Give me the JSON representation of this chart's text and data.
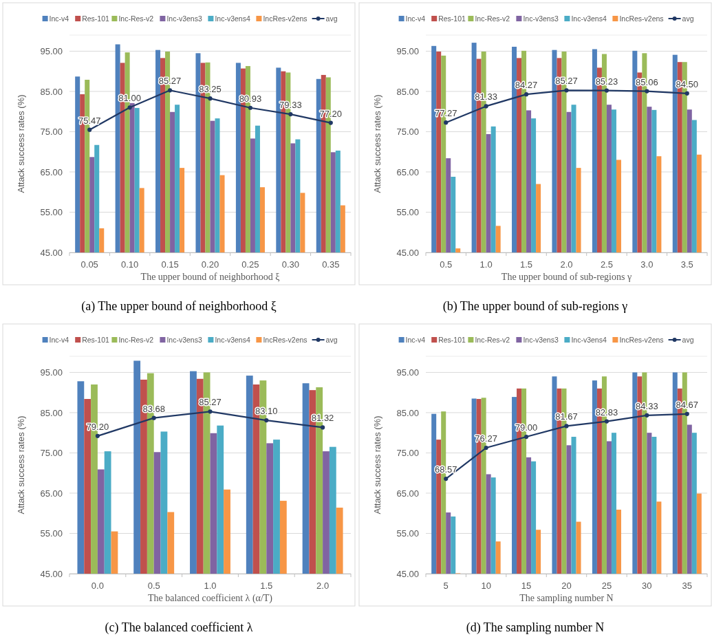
{
  "chart_data": [
    {
      "type": "bar",
      "title": "(a) The upper bound of neighborhood ξ",
      "xlabel": "The upper bound of neighborhood ξ",
      "ylabel": "Attack success rates (%)",
      "categories": [
        "0.05",
        "0.10",
        "0.15",
        "0.20",
        "0.25",
        "0.30",
        "0.35"
      ],
      "ylim": [
        45,
        99
      ],
      "yticks": [
        {
          "value": 45,
          "label": "45.00"
        },
        {
          "value": 55,
          "label": "55.00"
        },
        {
          "value": 65,
          "label": "65.00"
        },
        {
          "value": 75,
          "label": "75.00"
        },
        {
          "value": 85,
          "label": "85.00"
        },
        {
          "value": 95,
          "label": "95.00"
        }
      ],
      "grid": "y",
      "legend": "top",
      "series": [
        {
          "name": "Inc-v4",
          "color": "#4f81bd",
          "values": [
            88.7,
            96.7,
            95.3,
            94.5,
            92.1,
            90.9,
            88.1
          ]
        },
        {
          "name": "Res-101",
          "color": "#c0504d",
          "values": [
            84.3,
            92.1,
            93.3,
            92.1,
            90.7,
            90.0,
            89.1
          ]
        },
        {
          "name": "Inc-Res-v2",
          "color": "#9bbb59",
          "values": [
            87.9,
            94.7,
            94.9,
            92.2,
            91.3,
            89.7,
            88.5
          ]
        },
        {
          "name": "Inc-v3ens3",
          "color": "#8064a2",
          "values": [
            68.7,
            82.1,
            79.9,
            77.7,
            73.3,
            72.1,
            69.9
          ]
        },
        {
          "name": "Inc-v3ens4",
          "color": "#4bacc6",
          "values": [
            71.7,
            80.9,
            81.7,
            78.3,
            76.5,
            73.1,
            70.3
          ]
        },
        {
          "name": "IncRes-v2ens",
          "color": "#f79646",
          "values": [
            51.0,
            61.0,
            66.0,
            64.2,
            61.2,
            59.8,
            56.7
          ]
        },
        {
          "name": "avg",
          "type": "line",
          "color": "#203864",
          "marker": "circle",
          "values": [
            75.47,
            81.0,
            85.27,
            83.25,
            80.93,
            79.33,
            77.2
          ],
          "value_labels": [
            "75.47",
            "81.00",
            "85.27",
            "83.25",
            "80.93",
            "79.33",
            "77.20"
          ]
        }
      ]
    },
    {
      "type": "bar",
      "title": "(b) The upper bound of sub-regions γ",
      "xlabel": "The upper bound of sub-regions γ",
      "ylabel": "Attack success rates (%)",
      "categories": [
        "0.5",
        "1.0",
        "1.5",
        "2.0",
        "2.5",
        "3.0",
        "3.5"
      ],
      "ylim": [
        45,
        99
      ],
      "yticks": [
        {
          "value": 45,
          "label": "45.00"
        },
        {
          "value": 55,
          "label": "55.00"
        },
        {
          "value": 65,
          "label": "65.00"
        },
        {
          "value": 75,
          "label": "75.00"
        },
        {
          "value": 85,
          "label": "85.00"
        },
        {
          "value": 95,
          "label": "95.00"
        }
      ],
      "grid": "y",
      "legend": "top",
      "series": [
        {
          "name": "Inc-v4",
          "color": "#4f81bd",
          "values": [
            96.3,
            97.1,
            96.1,
            95.3,
            95.5,
            95.1,
            94.1
          ]
        },
        {
          "name": "Res-101",
          "color": "#c0504d",
          "values": [
            94.9,
            93.1,
            93.3,
            93.3,
            90.9,
            89.7,
            92.3
          ]
        },
        {
          "name": "Inc-Res-v2",
          "color": "#9bbb59",
          "values": [
            93.9,
            94.9,
            95.1,
            94.9,
            94.3,
            94.5,
            92.3
          ]
        },
        {
          "name": "Inc-v3ens3",
          "color": "#8064a2",
          "values": [
            68.4,
            74.4,
            80.3,
            79.9,
            81.7,
            81.2,
            80.5
          ]
        },
        {
          "name": "Inc-v3ens4",
          "color": "#4bacc6",
          "values": [
            63.8,
            76.3,
            78.3,
            81.7,
            80.5,
            80.4,
            77.9
          ]
        },
        {
          "name": "IncRes-v2ens",
          "color": "#f79646",
          "values": [
            46.0,
            51.6,
            62.0,
            66.0,
            68.0,
            68.9,
            69.3
          ]
        },
        {
          "name": "avg",
          "type": "line",
          "color": "#203864",
          "marker": "circle",
          "values": [
            77.27,
            81.33,
            84.27,
            85.27,
            85.23,
            85.06,
            84.5
          ],
          "value_labels": [
            "77.27",
            "81.33",
            "84.27",
            "85.27",
            "85.23",
            "85.06",
            "84.50"
          ]
        }
      ]
    },
    {
      "type": "bar",
      "title": "(c) The balanced coefficient λ",
      "xlabel": "The balanced coefficient λ (α/T)",
      "ylabel": "Attack success rates (%)",
      "categories": [
        "0.0",
        "0.5",
        "1.0",
        "1.5",
        "2.0"
      ],
      "ylim": [
        45,
        99
      ],
      "yticks": [
        {
          "value": 45,
          "label": "45.00"
        },
        {
          "value": 55,
          "label": "55.00"
        },
        {
          "value": 65,
          "label": "65.00"
        },
        {
          "value": 75,
          "label": "75.00"
        },
        {
          "value": 85,
          "label": "85.00"
        },
        {
          "value": 95,
          "label": "95.00"
        }
      ],
      "grid": "y",
      "legend": "top",
      "series": [
        {
          "name": "Inc-v4",
          "color": "#4f81bd",
          "values": [
            92.8,
            97.9,
            95.3,
            94.2,
            92.3
          ]
        },
        {
          "name": "Res-101",
          "color": "#c0504d",
          "values": [
            88.4,
            93.2,
            93.4,
            92.0,
            90.6
          ]
        },
        {
          "name": "Inc-Res-v2",
          "color": "#9bbb59",
          "values": [
            92.0,
            94.8,
            95.0,
            93.0,
            91.3
          ]
        },
        {
          "name": "Inc-v3ens3",
          "color": "#8064a2",
          "values": [
            70.9,
            75.2,
            79.9,
            77.4,
            75.4
          ]
        },
        {
          "name": "Inc-v3ens4",
          "color": "#4bacc6",
          "values": [
            75.4,
            80.3,
            81.8,
            78.3,
            76.5
          ]
        },
        {
          "name": "IncRes-v2ens",
          "color": "#f79646",
          "values": [
            55.5,
            60.3,
            65.9,
            63.1,
            61.4
          ]
        },
        {
          "name": "avg",
          "type": "line",
          "color": "#203864",
          "marker": "circle",
          "values": [
            79.2,
            83.68,
            85.27,
            83.1,
            81.32
          ],
          "value_labels": [
            "79.20",
            "83.68",
            "85.27",
            "83.10",
            "81.32"
          ]
        }
      ]
    },
    {
      "type": "bar",
      "title": "(d) The sampling number N",
      "xlabel": "The sampling number N",
      "ylabel": "Attack success rates (%)",
      "categories": [
        "5",
        "10",
        "15",
        "20",
        "25",
        "30",
        "35"
      ],
      "ylim": [
        45,
        99
      ],
      "yticks": [
        {
          "value": 45,
          "label": "45.00"
        },
        {
          "value": 55,
          "label": "55.00"
        },
        {
          "value": 65,
          "label": "65.00"
        },
        {
          "value": 75,
          "label": "75.00"
        },
        {
          "value": 85,
          "label": "85.00"
        },
        {
          "value": 95,
          "label": "95.00"
        }
      ],
      "grid": "y",
      "legend": "top",
      "series": [
        {
          "name": "Inc-v4",
          "color": "#4f81bd",
          "values": [
            84.7,
            88.5,
            88.9,
            94.0,
            93.0,
            95.0,
            95.0
          ]
        },
        {
          "name": "Res-101",
          "color": "#c0504d",
          "values": [
            78.3,
            88.4,
            91.0,
            91.0,
            91.0,
            94.0,
            91.0
          ]
        },
        {
          "name": "Inc-Res-v2",
          "color": "#9bbb59",
          "values": [
            85.3,
            88.7,
            91.0,
            91.0,
            94.0,
            95.0,
            95.0
          ]
        },
        {
          "name": "Inc-v3ens3",
          "color": "#8064a2",
          "values": [
            60.2,
            69.7,
            73.9,
            76.9,
            77.9,
            80.0,
            82.0
          ]
        },
        {
          "name": "Inc-v3ens4",
          "color": "#4bacc6",
          "values": [
            59.2,
            68.9,
            72.9,
            79.0,
            80.0,
            79.0,
            80.0
          ]
        },
        {
          "name": "IncRes-v2ens",
          "color": "#f79646",
          "values": [
            45.1,
            53.0,
            55.9,
            57.9,
            60.9,
            62.9,
            64.9
          ]
        },
        {
          "name": "avg",
          "type": "line",
          "color": "#203864",
          "marker": "circle",
          "values": [
            68.57,
            76.27,
            79.0,
            81.67,
            82.83,
            84.33,
            84.67
          ],
          "value_labels": [
            "68.57",
            "76.27",
            "79.00",
            "81.67",
            "82.83",
            "84.33",
            "84.67"
          ]
        }
      ]
    }
  ]
}
